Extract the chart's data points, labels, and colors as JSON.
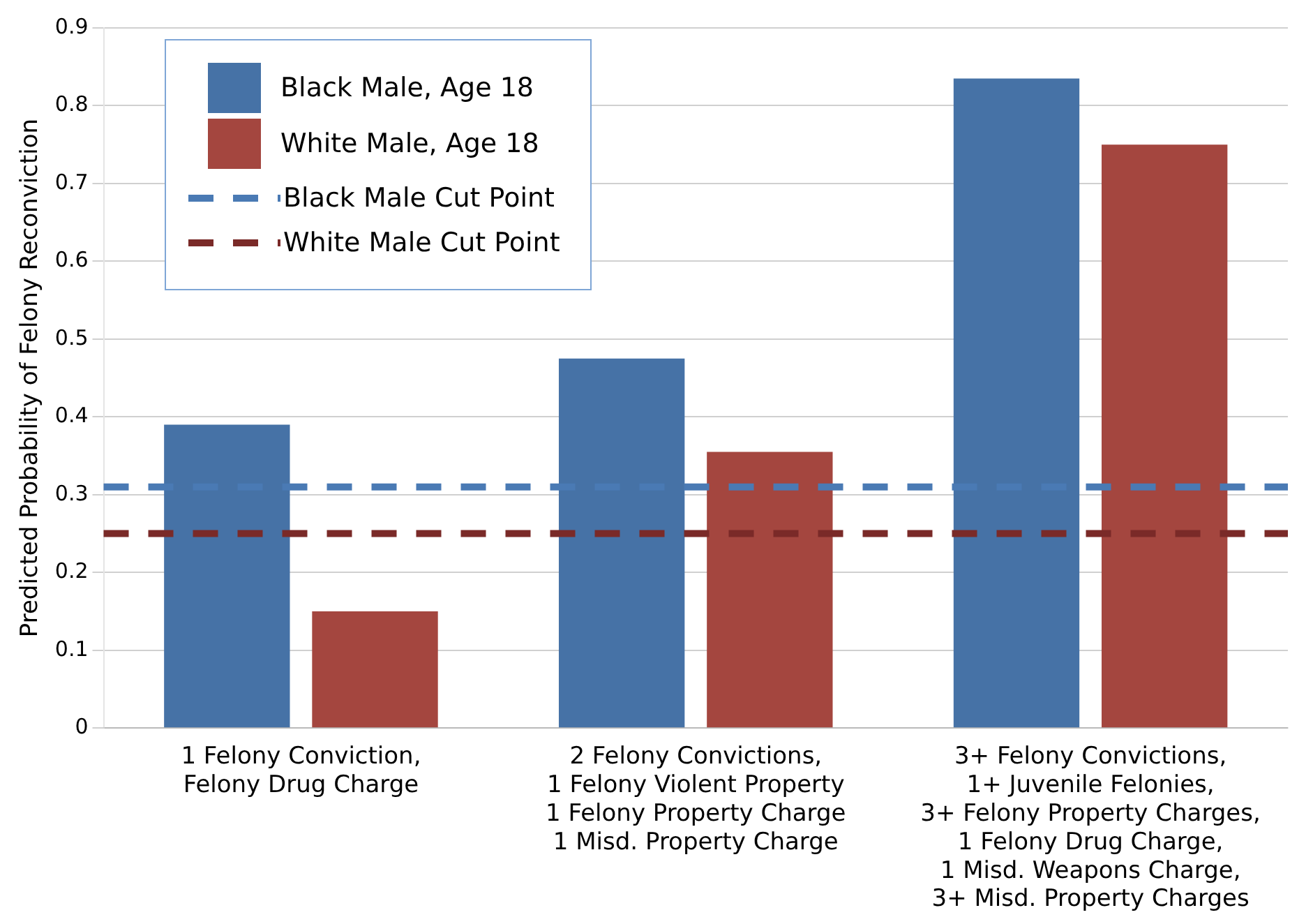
{
  "chart_data": {
    "type": "bar",
    "ylabel": "Predicted Probability of Felony Reconviction",
    "categories": [
      "1 Felony Conviction,\nFelony Drug Charge",
      "2 Felony Convictions,\n1 Felony Violent Property\n1 Felony Property Charge\n1 Misd. Property Charge",
      "3+ Felony Convictions,\n1+ Juvenile Felonies,\n3+ Felony Property Charges,\n1 Felony Drug Charge,\n1 Misd. Weapons Charge,\n3+ Misd. Property Charges"
    ],
    "series": [
      {
        "name": "Black Male, Age 18",
        "color": "#4672a6",
        "values": [
          0.39,
          0.475,
          0.835
        ]
      },
      {
        "name": "White Male, Age 18",
        "color": "#a4463f",
        "values": [
          0.15,
          0.355,
          0.75
        ]
      }
    ],
    "ref_lines": [
      {
        "axis": "y",
        "value": 0.31,
        "label": "Black Male Cut Point",
        "color": "#4a7ab4",
        "line_style": "dashed"
      },
      {
        "axis": "y",
        "value": 0.25,
        "label": "White Male Cut Point",
        "color": "#7a2a28",
        "line_style": "dashed"
      }
    ],
    "ylim": [
      0,
      0.9
    ],
    "yticks": [
      0,
      0.1,
      0.2,
      0.3,
      0.4,
      0.5,
      0.6,
      0.7,
      0.8,
      0.9
    ],
    "grid": "y",
    "legend": "top left"
  }
}
